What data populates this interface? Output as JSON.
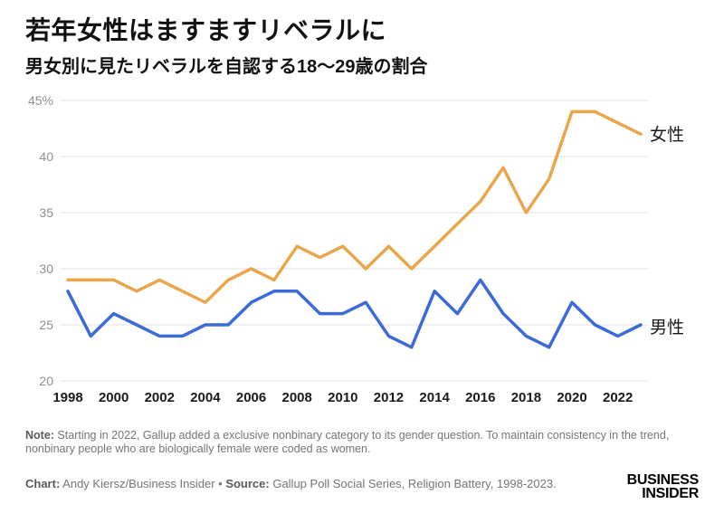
{
  "header": {
    "title": "若年女性はますますリベラルに",
    "subtitle": "男女別に見たリベラルを自認する18〜29歳の割合"
  },
  "chart_data": {
    "type": "line",
    "title": "若年女性はますますリベラルに",
    "subtitle": "男女別に見たリベラルを自認する18〜29歳の割合",
    "x": [
      1998,
      1999,
      2000,
      2001,
      2002,
      2003,
      2004,
      2005,
      2006,
      2007,
      2008,
      2009,
      2010,
      2011,
      2012,
      2013,
      2014,
      2015,
      2016,
      2017,
      2018,
      2019,
      2020,
      2021,
      2022,
      2023
    ],
    "series": [
      {
        "name": "女性",
        "color": "#EAA64B",
        "values": [
          29,
          29,
          29,
          28,
          29,
          28,
          27,
          29,
          30,
          29,
          32,
          31,
          32,
          30,
          32,
          30,
          32,
          34,
          36,
          39,
          35,
          38,
          44,
          44,
          43,
          42
        ]
      },
      {
        "name": "男性",
        "color": "#3A6BD9",
        "values": [
          28,
          24,
          26,
          25,
          24,
          24,
          25,
          25,
          27,
          28,
          28,
          26,
          26,
          27,
          24,
          23,
          28,
          26,
          29,
          26,
          24,
          23,
          27,
          25,
          24,
          25
        ]
      }
    ],
    "ylim": [
      20,
      45
    ],
    "y_ticks": [
      45,
      40,
      35,
      30,
      25,
      20
    ],
    "y_tick_labels": [
      "45%",
      "40",
      "35",
      "30",
      "25",
      "20"
    ],
    "x_tick_labels": [
      1998,
      2000,
      2002,
      2004,
      2006,
      2008,
      2010,
      2012,
      2014,
      2016,
      2018,
      2020,
      2022
    ],
    "grid": "horizontal",
    "legend_position": "end-of-line",
    "gridline_color": "#e1e1e1"
  },
  "footer": {
    "note_label": "Note:",
    "note_text": " Starting in 2022, Gallup added a exclusive nonbinary category to its gender question. To maintain consistency in the trend, nonbinary people who are biologically female were coded as women.",
    "credit_chart_label": "Chart:",
    "credit_chart_text": " Andy Kiersz/Business Insider • ",
    "credit_source_label": "Source:",
    "credit_source_text": " Gallup Poll Social Series, Religion Battery, 1998-2023."
  },
  "logo": {
    "line1": "BUSINESS",
    "line2": "INSIDER"
  }
}
